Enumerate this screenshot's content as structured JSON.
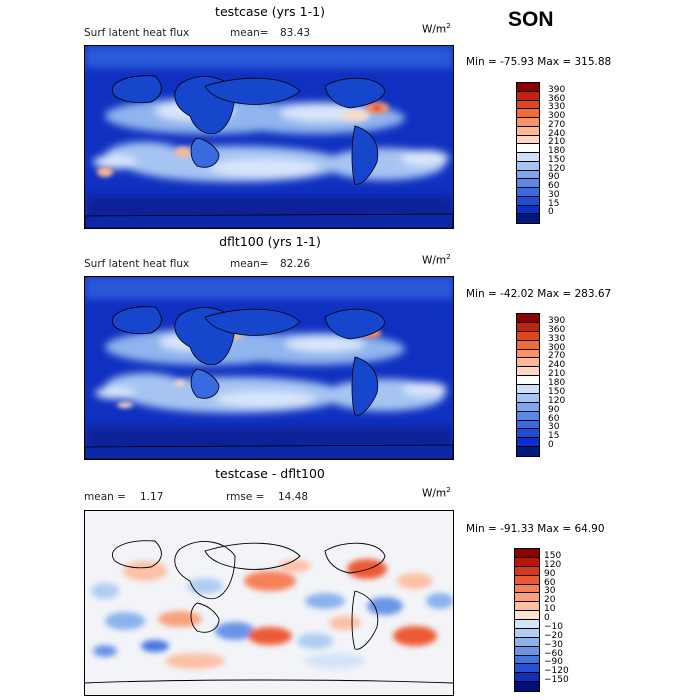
{
  "season": "SON",
  "panels": [
    {
      "title": "testcase (yrs 1-1)",
      "left_label": "Surf latent heat flux",
      "stat1_label": "mean=",
      "stat1_value": "83.43",
      "stat2_label": "",
      "stat2_value": "",
      "units": "W/m",
      "units_exp": "2",
      "min_max": "Min = -75.93  Max = 315.88",
      "levels": [
        "390",
        "360",
        "330",
        "300",
        "270",
        "240",
        "210",
        "180",
        "150",
        "120",
        "90",
        "60",
        "30",
        "15",
        "0"
      ],
      "colors": [
        "#8b0000",
        "#c0240e",
        "#e0441a",
        "#f06a3c",
        "#f7926a",
        "#fbb898",
        "#fdd9c4",
        "#ffffff",
        "#cfe0f8",
        "#a6c4f2",
        "#7fa6ec",
        "#5a88e6",
        "#3a6ae0",
        "#1e4ed8",
        "#0a30c8",
        "#001880"
      ]
    },
    {
      "title": "dflt100 (yrs 1-1)",
      "left_label": "Surf latent heat flux",
      "stat1_label": "mean=",
      "stat1_value": "82.26",
      "stat2_label": "",
      "stat2_value": "",
      "units": "W/m",
      "units_exp": "2",
      "min_max": "Min = -42.02  Max = 283.67",
      "levels": [
        "390",
        "360",
        "330",
        "300",
        "270",
        "240",
        "210",
        "180",
        "150",
        "120",
        "90",
        "60",
        "30",
        "15",
        "0"
      ],
      "colors": [
        "#8b0000",
        "#c0240e",
        "#e0441a",
        "#f06a3c",
        "#f7926a",
        "#fbb898",
        "#fdd9c4",
        "#ffffff",
        "#cfe0f8",
        "#a6c4f2",
        "#7fa6ec",
        "#5a88e6",
        "#3a6ae0",
        "#1e4ed8",
        "#0a30c8",
        "#001880"
      ]
    },
    {
      "title": "testcase - dflt100",
      "left_label": "mean =",
      "stat1_label": "",
      "stat1_value": "1.17",
      "stat2_label": "rmse =",
      "stat2_value": "14.48",
      "units": "W/m",
      "units_exp": "2",
      "min_max": "Min = -91.33  Max =  64.90",
      "levels": [
        "150",
        "120",
        "90",
        "60",
        "30",
        "20",
        "10",
        "0",
        "−10",
        "−20",
        "−30",
        "−60",
        "−90",
        "−120",
        "−150"
      ],
      "colors": [
        "#8b0000",
        "#b81808",
        "#d8381a",
        "#ec5a34",
        "#f68058",
        "#f9a07c",
        "#fcc0a4",
        "#fde2d2",
        "#d4e4f8",
        "#b0cdf2",
        "#8cb2ec",
        "#6a94e6",
        "#4674de",
        "#2850d2",
        "#1030b8",
        "#00107a"
      ]
    }
  ]
}
